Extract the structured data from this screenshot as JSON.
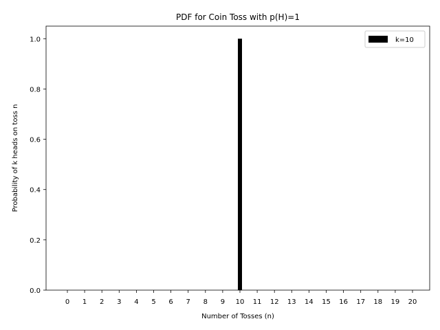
{
  "chart_data": {
    "type": "bar",
    "title": "PDF for Coin Toss with p(H)=1",
    "xlabel": "Number of Tosses (n)",
    "ylabel": "Probability of k heads on toss n",
    "categories": [
      0,
      1,
      2,
      3,
      4,
      5,
      6,
      7,
      8,
      9,
      10,
      11,
      12,
      13,
      14,
      15,
      16,
      17,
      18,
      19,
      20
    ],
    "series": [
      {
        "name": "k=10",
        "color": "#000000",
        "values": [
          0,
          0,
          0,
          0,
          0,
          0,
          0,
          0,
          0,
          0,
          1.0,
          0,
          0,
          0,
          0,
          0,
          0,
          0,
          0,
          0,
          0
        ]
      }
    ],
    "ylim": [
      0,
      1.05
    ],
    "yticks": [
      "0.0",
      "0.2",
      "0.4",
      "0.6",
      "0.8",
      "1.0"
    ],
    "grid": false,
    "legend_position": "upper right"
  }
}
